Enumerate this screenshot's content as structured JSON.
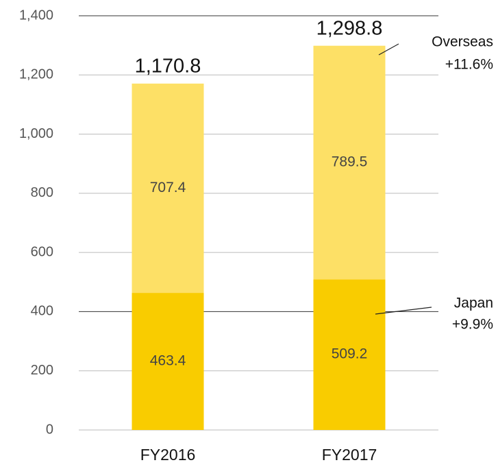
{
  "chart_data": {
    "type": "stacked_bar",
    "categories": [
      "FY2016",
      "FY2017"
    ],
    "series": [
      {
        "name": "Japan",
        "color": "#f9cc00",
        "values": [
          463.4,
          509.2
        ]
      },
      {
        "name": "Overseas",
        "color": "#fde066",
        "values": [
          707.4,
          789.5
        ]
      }
    ],
    "totals": [
      1170.8,
      1298.8
    ],
    "total_labels": [
      "1,170.8",
      "1,298.8"
    ],
    "annotations": [
      [
        "Japan",
        "+9.9%"
      ],
      [
        "Overseas",
        "+11.6%"
      ]
    ],
    "ylim": [
      0,
      1400
    ],
    "yticks": [
      0,
      200,
      400,
      600,
      800,
      {
        "value": 1000,
        "label": "1,000"
      },
      {
        "value": 1200,
        "label": "1,200"
      },
      {
        "value": 1400,
        "label": "1,400"
      }
    ],
    "grid": true
  }
}
